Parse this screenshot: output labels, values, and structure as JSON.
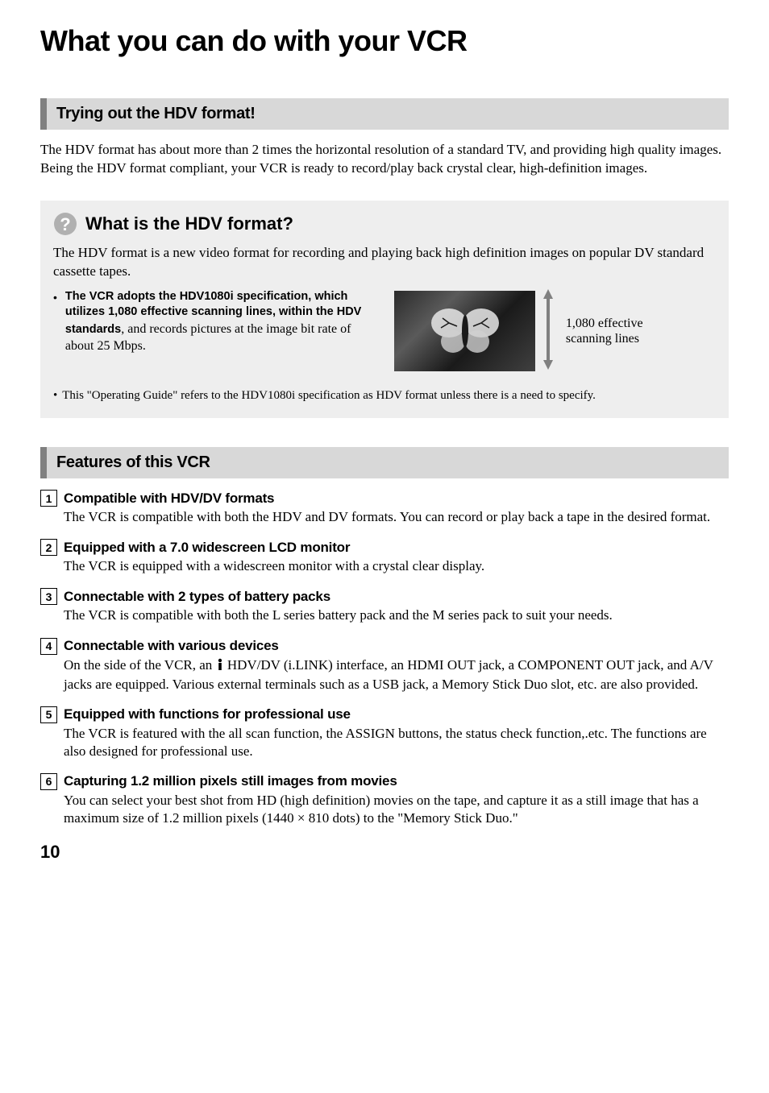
{
  "page": {
    "title": "What you can do with your VCR",
    "number": "10"
  },
  "section1": {
    "header": "Trying out the HDV format!",
    "body": "The HDV format has about more than 2 times the horizontal resolution of a standard TV, and providing high quality images. Being the HDV format compliant, your VCR is ready to record/play back crystal clear, high-definition images."
  },
  "question_box": {
    "title": "What is the HDV format?",
    "body": "The HDV format is a new video format for recording and playing back high definition images on popular DV standard cassette tapes.",
    "spec_bold": "The VCR adopts the HDV1080i specification, which utilizes 1,080 effective scanning lines, within the HDV standards",
    "spec_rest": ", and records pictures at the image bit rate of about 25 Mbps.",
    "scan_label_1": "1,080 effective",
    "scan_label_2": "scanning lines",
    "footnote": "This \"Operating Guide\" refers to the HDV1080i specification as HDV format unless there is a need to specify.",
    "arrow_color": "#808080",
    "icon_stroke": "#ffffff",
    "icon_fill": "#b0b0b0"
  },
  "section2": {
    "header": "Features of this VCR"
  },
  "features": [
    {
      "num": "1",
      "title": "Compatible with HDV/DV formats",
      "body": "The VCR is compatible with both the HDV and DV formats. You can record or play back a tape in the desired format."
    },
    {
      "num": "2",
      "title": "Equipped with a 7.0 widescreen LCD monitor",
      "body": "The VCR is equipped with a widescreen monitor with a crystal clear display."
    },
    {
      "num": "3",
      "title": "Connectable with 2 types of battery packs",
      "body": "The VCR is compatible with both the L series battery pack and the M series pack to suit your needs."
    },
    {
      "num": "4",
      "title": "Connectable with various devices",
      "body_pre": "On the side of the VCR, an ",
      "body_post": " HDV/DV (i.LINK) interface, an HDMI OUT jack, a COMPONENT OUT jack, and A/V jacks are equipped. Various external terminals such as a USB jack, a Memory Stick Duo slot, etc. are also provided."
    },
    {
      "num": "5",
      "title": "Equipped with functions for professional use",
      "body": "The VCR is featured with the all scan function, the ASSIGN buttons, the status check function,.etc. The functions are also designed for professional use."
    },
    {
      "num": "6",
      "title": "Capturing 1.2 million pixels still images from movies",
      "body": "You can select your best shot from HD (high definition) movies on the tape, and capture it as a still image that has a maximum size of 1.2 million pixels (1440 × 810 dots) to the \"Memory Stick Duo.\""
    }
  ]
}
